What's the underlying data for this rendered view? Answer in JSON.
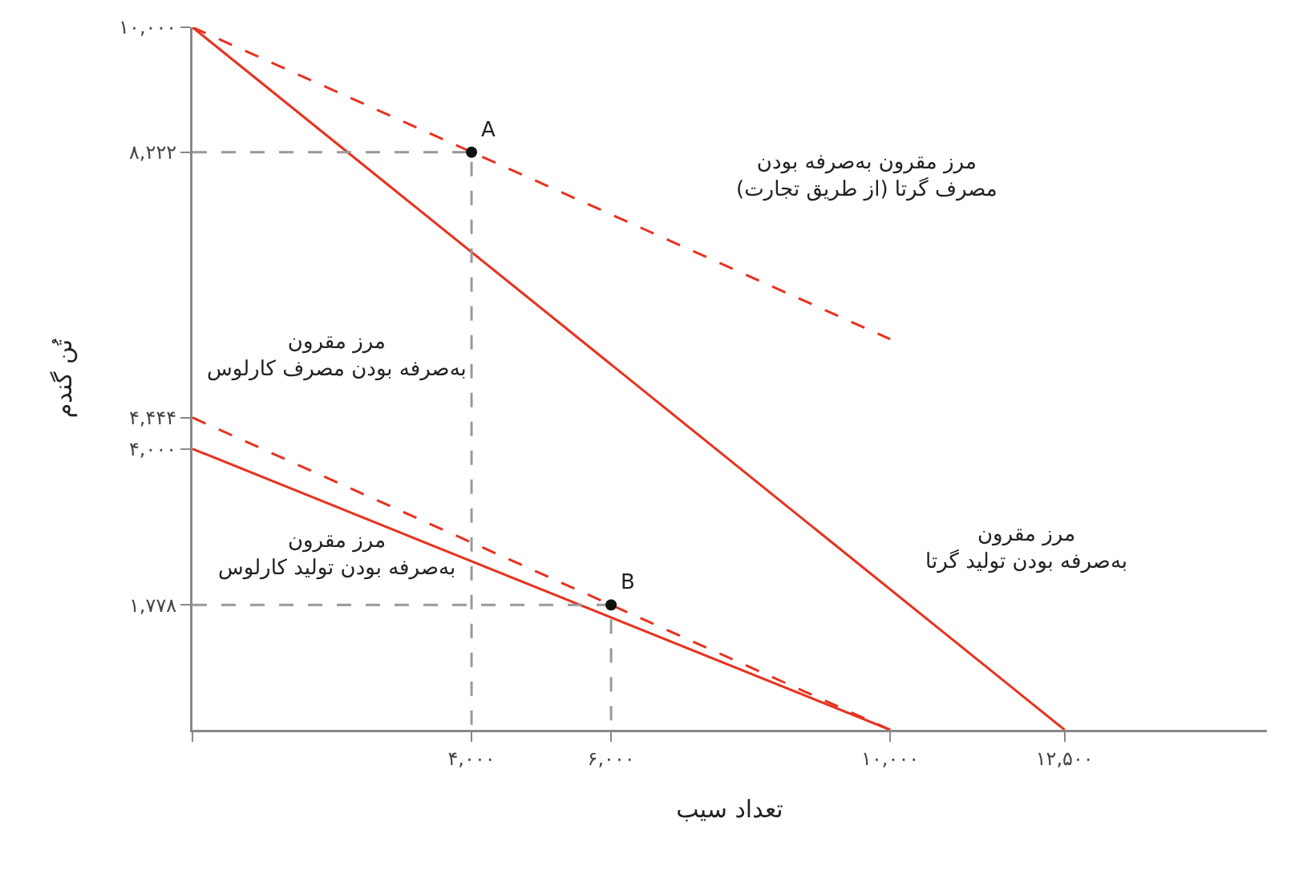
{
  "chart_data": {
    "type": "line",
    "xlabel": "تعداد سیب",
    "ylabel": "تُن گندم",
    "xlim": [
      0,
      15400
    ],
    "ylim": [
      0,
      10000
    ],
    "xticks": [
      {
        "value": 0,
        "label": null
      },
      {
        "value": 4000,
        "label": "۴,۰۰۰"
      },
      {
        "value": 6000,
        "label": "۶,۰۰۰"
      },
      {
        "value": 10000,
        "label": "۱۰,۰۰۰"
      },
      {
        "value": 12500,
        "label": "۱۲,۵۰۰"
      }
    ],
    "yticks": [
      {
        "value": 1778,
        "label": "۱,۷۷۸"
      },
      {
        "value": 4000,
        "label": "۴,۰۰۰"
      },
      {
        "value": 4444,
        "label": "۴,۴۴۴"
      },
      {
        "value": 8222,
        "label": "۸,۲۲۲"
      },
      {
        "value": 10000,
        "label": "۱۰,۰۰۰"
      }
    ],
    "grid": false,
    "series": [
      {
        "color": "#e8321e",
        "line_style": "solid",
        "x": [
          0,
          12500
        ],
        "values": [
          10000,
          0
        ]
      },
      {
        "color": "#e8321e",
        "line_style": "solid",
        "x": [
          0,
          10000
        ],
        "values": [
          4000,
          0
        ]
      },
      {
        "color": "#e8321e",
        "line_style": "dashed",
        "x": [
          0,
          10000
        ],
        "values": [
          10000,
          5560
        ]
      },
      {
        "color": "#e8321e",
        "line_style": "dashed",
        "x": [
          0,
          10000
        ],
        "values": [
          4444,
          0
        ]
      },
      {
        "color": "#999999",
        "line_style": "dashed",
        "x": [
          0,
          4000,
          4000
        ],
        "values": [
          8222,
          8222,
          0
        ]
      },
      {
        "color": "#999999",
        "line_style": "dashed",
        "x": [
          0,
          6000,
          6000
        ],
        "values": [
          1778,
          1778,
          0
        ]
      },
      {
        "type": "scatter",
        "marker": "circle",
        "color": "#111111",
        "x": [
          4000,
          6000
        ],
        "values": [
          8222,
          1778
        ]
      }
    ],
    "annotations": [
      {
        "text": "A",
        "x": 4000,
        "y": 8222
      },
      {
        "text": "B",
        "x": 6000,
        "y": 1778
      },
      "مرز مقرون به‌صرفه بودن\nمصرف گرتا (از طریق تجارت)",
      "مرز مقرون\nبه‌صرفه بودن مصرف کارلوس",
      "مرز مقرون\nبه‌صرفه بودن تولید کارلوس",
      "مرز مقرون\nبه‌صرفه بودن تولید گرتا"
    ]
  }
}
